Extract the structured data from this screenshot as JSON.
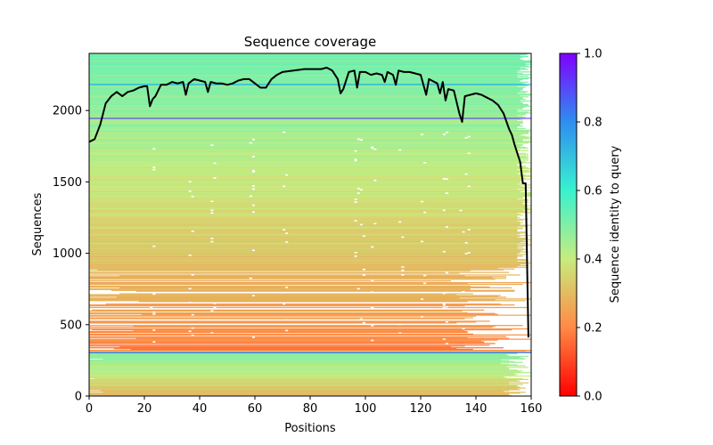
{
  "chart_data": {
    "type": "heatmap",
    "title": "Sequence coverage",
    "xlabel": "Positions",
    "ylabel": "Sequences",
    "xlim": [
      0,
      160
    ],
    "ylim": [
      0,
      2400
    ],
    "x_ticks": [
      0,
      20,
      40,
      60,
      80,
      100,
      120,
      140,
      160
    ],
    "y_ticks": [
      0,
      500,
      1000,
      1500,
      2000
    ],
    "colorbar": {
      "label": "Sequence identity to query",
      "range": [
        0,
        1
      ],
      "ticks": [
        0.0,
        0.2,
        0.4,
        0.6,
        0.8,
        1.0
      ],
      "colormap": "rainbow_r"
    },
    "coverage_line": {
      "color": "#000000",
      "x": [
        0,
        2,
        4,
        6,
        8,
        10,
        12,
        14,
        16,
        18,
        20,
        21,
        22,
        23,
        24,
        26,
        28,
        30,
        32,
        34,
        35,
        36,
        38,
        40,
        42,
        43,
        44,
        46,
        48,
        50,
        52,
        54,
        56,
        58,
        60,
        62,
        64,
        66,
        68,
        70,
        74,
        78,
        80,
        84,
        86,
        88,
        90,
        91,
        92,
        94,
        96,
        97,
        98,
        100,
        102,
        104,
        106,
        107,
        108,
        110,
        111,
        112,
        114,
        116,
        118,
        120,
        122,
        123,
        124,
        126,
        127,
        128,
        129,
        130,
        132,
        134,
        135,
        136,
        138,
        140,
        142,
        144,
        146,
        148,
        150,
        152,
        153,
        154,
        156,
        157,
        158,
        159
      ],
      "y": [
        1780,
        1800,
        1900,
        2050,
        2100,
        2130,
        2100,
        2130,
        2140,
        2160,
        2170,
        2170,
        2030,
        2080,
        2100,
        2180,
        2180,
        2200,
        2190,
        2200,
        2110,
        2190,
        2220,
        2210,
        2200,
        2130,
        2200,
        2190,
        2190,
        2180,
        2190,
        2210,
        2220,
        2220,
        2190,
        2160,
        2160,
        2220,
        2250,
        2270,
        2280,
        2290,
        2290,
        2290,
        2300,
        2280,
        2220,
        2120,
        2150,
        2270,
        2280,
        2160,
        2270,
        2270,
        2250,
        2260,
        2250,
        2200,
        2270,
        2250,
        2180,
        2280,
        2270,
        2270,
        2260,
        2250,
        2110,
        2220,
        2210,
        2190,
        2120,
        2200,
        2070,
        2150,
        2140,
        1980,
        1920,
        2100,
        2110,
        2120,
        2110,
        2090,
        2070,
        2040,
        1980,
        1870,
        1830,
        1760,
        1640,
        1490,
        1490,
        410
      ]
    },
    "horizontal_markers": [
      {
        "y": 2182,
        "color": "#00a0ff"
      },
      {
        "y": 1945,
        "color": "#6020ff"
      },
      {
        "y": 305,
        "color": "#2040ff"
      }
    ],
    "identity_profile": [
      {
        "row": 2400,
        "identity": 0.52
      },
      {
        "row": 2000,
        "identity": 0.47
      },
      {
        "row": 1500,
        "identity": 0.4
      },
      {
        "row": 1000,
        "identity": 0.32
      },
      {
        "row": 600,
        "identity": 0.25
      },
      {
        "row": 320,
        "identity": 0.18
      },
      {
        "row": 305,
        "identity": 0.5
      },
      {
        "row": 150,
        "identity": 0.4
      },
      {
        "row": 0,
        "identity": 0.28
      }
    ]
  }
}
